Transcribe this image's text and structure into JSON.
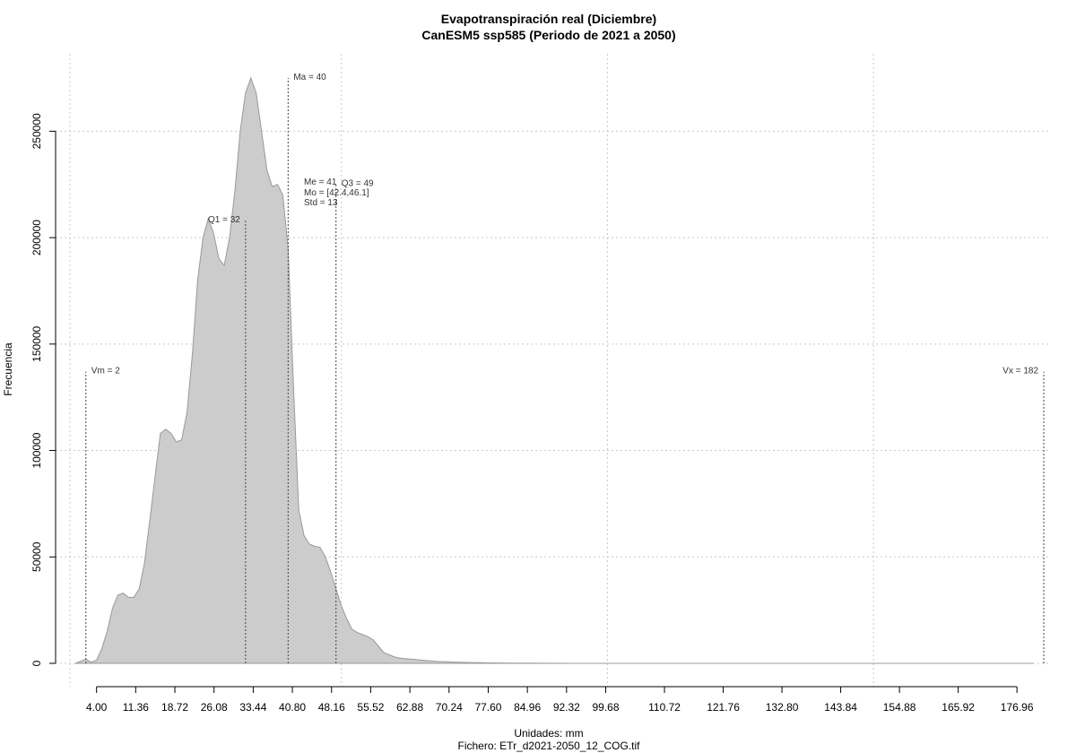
{
  "chart_data": {
    "type": "area",
    "title": "Evapotranspiración real (Diciembre)",
    "subtitle": "CanESM5 ssp585 (Periodo de 2021 a 2050)",
    "xlabel": "Unidades: mm",
    "ylabel": "Frecuencia",
    "footer": "Fichero: ETr_d2021-2050_12_COG.tif",
    "xlim": [
      -1,
      183
    ],
    "ylim": [
      0,
      275000
    ],
    "grid": true,
    "fill_color": "#cccccc",
    "line_color": "#999999",
    "x_ticks": [
      "4.00",
      "11.36",
      "18.72",
      "26.08",
      "33.44",
      "40.80",
      "48.16",
      "55.52",
      "62.88",
      "70.24",
      "77.60",
      "84.96",
      "92.32",
      "99.68",
      "110.72",
      "121.76",
      "132.80",
      "143.84",
      "154.88",
      "165.92",
      "176.96"
    ],
    "y_ticks": [
      "0",
      "50000",
      "100000",
      "150000",
      "200000",
      "250000"
    ],
    "x_grid": [
      -1,
      50,
      100,
      150
    ],
    "y_grid": [
      0,
      50000,
      100000,
      150000,
      200000,
      250000
    ],
    "series": [
      {
        "x": [
          0,
          2,
          3,
          4,
          5,
          6,
          7,
          8,
          9,
          10,
          11,
          12,
          13,
          14,
          15,
          16,
          17,
          18,
          19,
          20,
          21,
          22,
          23,
          24,
          25,
          26,
          27,
          28,
          29,
          30,
          31,
          32,
          33,
          34,
          35,
          36,
          37,
          38,
          39,
          40,
          41,
          42,
          43,
          44,
          45,
          46,
          47,
          48,
          49,
          50,
          51,
          52,
          53,
          54,
          55,
          56,
          57,
          58,
          59,
          60,
          61,
          62,
          63,
          64,
          65,
          66,
          67,
          68,
          69,
          70,
          72,
          74,
          76,
          78,
          80,
          82,
          84,
          86,
          88,
          90,
          95,
          100,
          110,
          120,
          140,
          160,
          180
        ],
        "y": [
          0,
          2000,
          500,
          1500,
          7000,
          15000,
          26000,
          32000,
          33000,
          31000,
          31000,
          35000,
          47000,
          67000,
          88000,
          108000,
          110000,
          108000,
          104000,
          105000,
          118000,
          145000,
          180000,
          200000,
          209000,
          202000,
          190000,
          187000,
          200000,
          222000,
          250000,
          268000,
          275000,
          268000,
          250000,
          232000,
          224000,
          225000,
          220000,
          195000,
          130000,
          72000,
          60000,
          56000,
          55000,
          54500,
          50000,
          43000,
          35000,
          27000,
          21000,
          16000,
          14500,
          13500,
          12500,
          11000,
          8000,
          5000,
          4000,
          3000,
          2500,
          2200,
          2000,
          1800,
          1500,
          1300,
          1100,
          900,
          800,
          700,
          500,
          400,
          300,
          200,
          150,
          120,
          100,
          80,
          60,
          40,
          20,
          10,
          5,
          0,
          0,
          0,
          0
        ]
      }
    ],
    "vlines": [
      {
        "x": 2,
        "top": 137000,
        "label": "Vm = 2",
        "anchor": "start"
      },
      {
        "x": 32,
        "top": 208000,
        "label": "Q1 = 32",
        "anchor": "end"
      },
      {
        "x": 40,
        "top": 275000,
        "label": "Ma = 40",
        "anchor": "start"
      },
      {
        "x": 49,
        "top": 225000,
        "label": "Q3 = 49",
        "anchor": "start"
      },
      {
        "x": 182,
        "top": 137000,
        "label": "Vx = 182",
        "anchor": "end"
      }
    ],
    "stats": [
      "Me = 41",
      "Mo = [42.4,46.1]",
      "Std = 13"
    ]
  }
}
